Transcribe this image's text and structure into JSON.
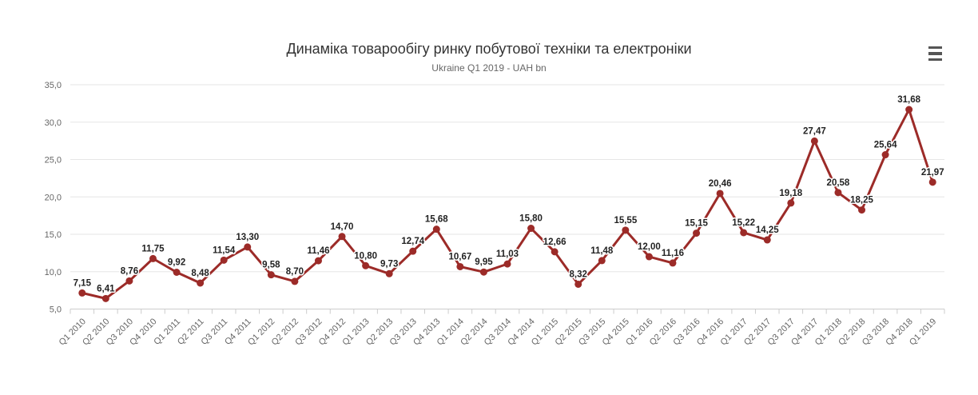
{
  "header": {
    "title": "Динаміка товарообігу ринку побутової техніки та електроніки",
    "subtitle": "Ukraine Q1 2019 - UAH bn"
  },
  "export_menu": {
    "icon": "hamburger-menu-icon",
    "aria_label": "Chart context menu"
  },
  "chart_data": {
    "type": "line",
    "title": "Динаміка товарообігу ринку побутової техніки та електроніки",
    "subtitle": "Ukraine Q1 2019 - UAH bn",
    "categories": [
      "Q1 2010",
      "Q2 2010",
      "Q3 2010",
      "Q4 2010",
      "Q1 2011",
      "Q2 2011",
      "Q3 2011",
      "Q4 2011",
      "Q1 2012",
      "Q2 2012",
      "Q3 2012",
      "Q4 2012",
      "Q1 2013",
      "Q2 2013",
      "Q3 2013",
      "Q4 2013",
      "Q1 2014",
      "Q2 2014",
      "Q3 2014",
      "Q4 2014",
      "Q1 2015",
      "Q2 2015",
      "Q3 2015",
      "Q4 2015",
      "Q1 2016",
      "Q2 2016",
      "Q3 2016",
      "Q4 2016",
      "Q1 2017",
      "Q2 2017",
      "Q3 2017",
      "Q4 2017",
      "Q1 2018",
      "Q2 2018",
      "Q3 2018",
      "Q4 2018",
      "Q1 2019"
    ],
    "values": [
      7.15,
      6.41,
      8.76,
      11.75,
      9.92,
      8.48,
      11.54,
      13.3,
      9.58,
      8.7,
      11.46,
      14.7,
      10.8,
      9.73,
      12.74,
      15.68,
      10.67,
      9.95,
      11.03,
      15.8,
      12.66,
      8.32,
      11.48,
      15.55,
      12.0,
      11.16,
      15.15,
      20.46,
      15.22,
      14.25,
      19.18,
      27.47,
      20.58,
      18.25,
      25.64,
      31.68,
      21.97
    ],
    "point_labels": [
      "7,15",
      "6,41",
      "8,76",
      "11,75",
      "9,92",
      "8,48",
      "11,54",
      "13,30",
      "9,58",
      "8,70",
      "11,46",
      "14,70",
      "10,80",
      "9,73",
      "12,74",
      "15,68",
      "10,67",
      "9,95",
      "11,03",
      "15,80",
      "12,66",
      "8,32",
      "11,48",
      "15,55",
      "12,00",
      "11,16",
      "15,15",
      "20,46",
      "15,22",
      "14,25",
      "19,18",
      "27,47",
      "20,58",
      "18,25",
      "25,64",
      "31,68",
      "21,97"
    ],
    "y_tick_values": [
      5,
      10,
      15,
      20,
      25,
      30,
      35
    ],
    "y_tick_labels": [
      "5,0",
      "10,0",
      "15,0",
      "20,0",
      "25,0",
      "30,0",
      "35,0"
    ],
    "ylim": [
      5,
      35
    ],
    "xlabel": "",
    "ylabel": "",
    "grid": true,
    "legend": "none",
    "decimal_separator": ",",
    "line_color": "#9c2b28",
    "marker": "circle",
    "data_labels": true
  },
  "colors": {
    "line": "#9c2b28",
    "title_text": "#333333",
    "subtitle_text": "#666666",
    "axis_text": "#666666",
    "gridline": "#e6e6e6",
    "axis_line": "#cccccc",
    "data_label_text": "#222222",
    "menu_icon": "#555555",
    "background": "#ffffff"
  }
}
